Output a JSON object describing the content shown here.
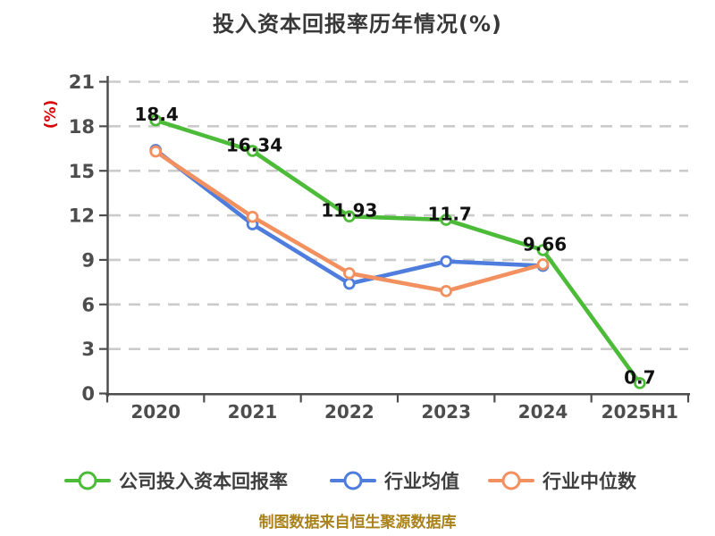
{
  "title": "投入资本回报率历年情况(%)",
  "footer": "制图数据来自恒生聚源数据库",
  "chart_data": {
    "type": "line",
    "title": "投入资本回报率历年情况(%)",
    "ylabel": "(%)",
    "xlabel": "",
    "categories": [
      "2020",
      "2021",
      "2022",
      "2023",
      "2024",
      "2025H1"
    ],
    "ylim": [
      0,
      21
    ],
    "yticks": [
      0,
      3,
      6,
      9,
      12,
      15,
      18,
      21
    ],
    "grid": "horizontal-dashed",
    "legend_position": "bottom",
    "series": [
      {
        "name": "公司投入资本回报率",
        "color": "#4CBB38",
        "values": [
          18.4,
          16.34,
          11.93,
          11.7,
          9.66,
          0.7
        ],
        "point_labels": [
          "18.4",
          "16.34",
          "11.93",
          "11.7",
          "9.66",
          "0.7"
        ]
      },
      {
        "name": "行业均值",
        "color": "#4E7DDD",
        "values": [
          16.4,
          11.4,
          7.4,
          8.9,
          8.6,
          null
        ],
        "point_labels": []
      },
      {
        "name": "行业中位数",
        "color": "#F2915F",
        "values": [
          16.3,
          11.9,
          8.1,
          6.9,
          8.7,
          null
        ],
        "point_labels": []
      }
    ],
    "styles": {
      "grid_color": "#CBCBCB",
      "axis_color": "#4D4D4D",
      "tick_label_color": "#4D4D4D",
      "data_label_color": "#111111",
      "title_color": "#383838",
      "ylabel_color": "#DD0000",
      "footer_color": "#AA821A",
      "marker_fill": "#ffffff"
    }
  }
}
